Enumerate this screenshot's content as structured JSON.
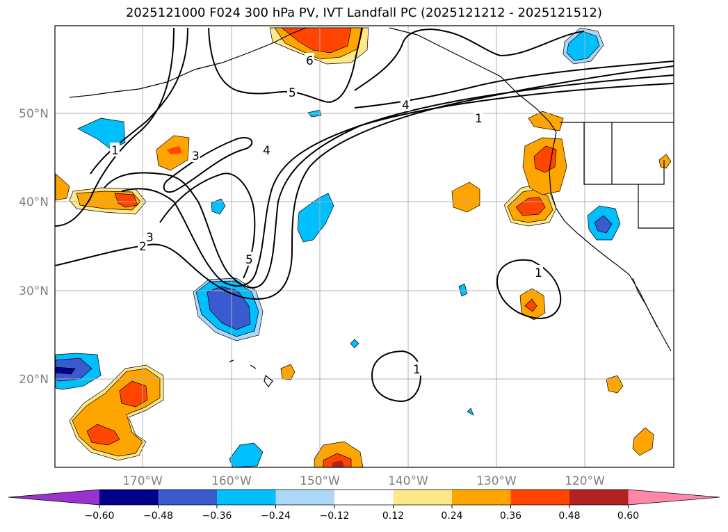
{
  "title": "2025121000 F024 300 hPa PV, IVT Landfall PC (2025121212 - 2025121512)",
  "map": {
    "lon_labels": [
      "170°W",
      "160°W",
      "150°W",
      "140°W",
      "130°W",
      "120°W"
    ],
    "lat_labels": [
      "50°N",
      "40°N",
      "30°N",
      "20°N"
    ],
    "contour_labels": [
      "6",
      "5",
      "4",
      "4",
      "1",
      "1",
      "3",
      "1",
      "2",
      "3",
      "5",
      "1"
    ]
  },
  "colorbar": {
    "ticks": [
      "−0.60",
      "−0.48",
      "−0.36",
      "−0.24",
      "−0.12",
      "0.12",
      "0.24",
      "0.36",
      "0.48",
      "0.60"
    ],
    "colors": [
      "#9933cc",
      "#00008b",
      "#3a5bcf",
      "#00bfff",
      "#add8f7",
      "#ffffff",
      "#ffe88a",
      "#ffa500",
      "#ff4500",
      "#b22222",
      "#ff88aa"
    ]
  }
}
